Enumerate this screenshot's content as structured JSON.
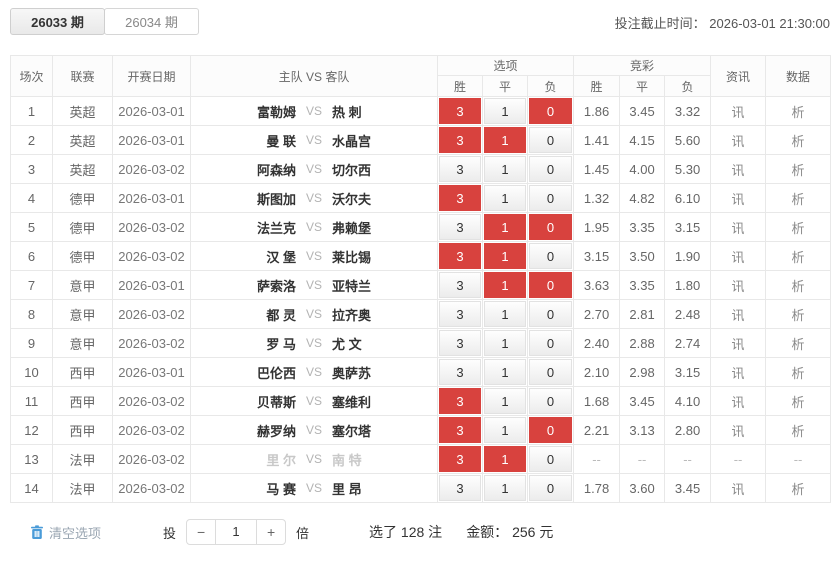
{
  "tabs": [
    {
      "label": "26033 期",
      "active": true
    },
    {
      "label": "26034 期",
      "active": false
    }
  ],
  "deadline": {
    "label": "投注截止时间：",
    "value": "2026-03-01 21:30:00"
  },
  "table": {
    "headers": {
      "match_no": "场次",
      "league": "联赛",
      "date": "开赛日期",
      "teams": "主队  VS  客队",
      "options_group": "选项",
      "jingcai_group": "竞彩",
      "win": "胜",
      "draw": "平",
      "lose": "负",
      "news": "资讯",
      "data": "数据"
    },
    "vs": "VS",
    "option_labels": [
      "3",
      "1",
      "0"
    ],
    "news_label": "讯",
    "data_label": "析",
    "dash": "--",
    "rows": [
      {
        "no": "1",
        "league": "英超",
        "date": "2026-03-01",
        "home": "富勒姆",
        "away": "热 刺",
        "sel": [
          1,
          0,
          1
        ],
        "odds": [
          "1.86",
          "3.45",
          "3.32"
        ],
        "disabled": false
      },
      {
        "no": "2",
        "league": "英超",
        "date": "2026-03-01",
        "home": "曼 联",
        "away": "水晶宫",
        "sel": [
          1,
          1,
          0
        ],
        "odds": [
          "1.41",
          "4.15",
          "5.60"
        ],
        "disabled": false
      },
      {
        "no": "3",
        "league": "英超",
        "date": "2026-03-02",
        "home": "阿森纳",
        "away": "切尔西",
        "sel": [
          0,
          0,
          0
        ],
        "odds": [
          "1.45",
          "4.00",
          "5.30"
        ],
        "disabled": false
      },
      {
        "no": "4",
        "league": "德甲",
        "date": "2026-03-01",
        "home": "斯图加",
        "away": "沃尔夫",
        "sel": [
          1,
          0,
          0
        ],
        "odds": [
          "1.32",
          "4.82",
          "6.10"
        ],
        "disabled": false
      },
      {
        "no": "5",
        "league": "德甲",
        "date": "2026-03-02",
        "home": "法兰克",
        "away": "弗赖堡",
        "sel": [
          0,
          1,
          1
        ],
        "odds": [
          "1.95",
          "3.35",
          "3.15"
        ],
        "disabled": false
      },
      {
        "no": "6",
        "league": "德甲",
        "date": "2026-03-02",
        "home": "汉 堡",
        "away": "莱比锡",
        "sel": [
          1,
          1,
          0
        ],
        "odds": [
          "3.15",
          "3.50",
          "1.90"
        ],
        "disabled": false
      },
      {
        "no": "7",
        "league": "意甲",
        "date": "2026-03-01",
        "home": "萨索洛",
        "away": "亚特兰",
        "sel": [
          0,
          1,
          1
        ],
        "odds": [
          "3.63",
          "3.35",
          "1.80"
        ],
        "disabled": false
      },
      {
        "no": "8",
        "league": "意甲",
        "date": "2026-03-02",
        "home": "都 灵",
        "away": "拉齐奥",
        "sel": [
          0,
          0,
          0
        ],
        "odds": [
          "2.70",
          "2.81",
          "2.48"
        ],
        "disabled": false
      },
      {
        "no": "9",
        "league": "意甲",
        "date": "2026-03-02",
        "home": "罗 马",
        "away": "尤 文",
        "sel": [
          0,
          0,
          0
        ],
        "odds": [
          "2.40",
          "2.88",
          "2.74"
        ],
        "disabled": false
      },
      {
        "no": "10",
        "league": "西甲",
        "date": "2026-03-01",
        "home": "巴伦西",
        "away": "奥萨苏",
        "sel": [
          0,
          0,
          0
        ],
        "odds": [
          "2.10",
          "2.98",
          "3.15"
        ],
        "disabled": false
      },
      {
        "no": "11",
        "league": "西甲",
        "date": "2026-03-02",
        "home": "贝蒂斯",
        "away": "塞维利",
        "sel": [
          1,
          0,
          0
        ],
        "odds": [
          "1.68",
          "3.45",
          "4.10"
        ],
        "disabled": false
      },
      {
        "no": "12",
        "league": "西甲",
        "date": "2026-03-02",
        "home": "赫罗纳",
        "away": "塞尔塔",
        "sel": [
          1,
          0,
          1
        ],
        "odds": [
          "2.21",
          "3.13",
          "2.80"
        ],
        "disabled": false
      },
      {
        "no": "13",
        "league": "法甲",
        "date": "2026-03-02",
        "home": "里 尔",
        "away": "南 特",
        "sel": [
          1,
          1,
          0
        ],
        "odds": [
          "--",
          "--",
          "--"
        ],
        "disabled": true
      },
      {
        "no": "14",
        "league": "法甲",
        "date": "2026-03-02",
        "home": "马 赛",
        "away": "里 昂",
        "sel": [
          0,
          0,
          0
        ],
        "odds": [
          "1.78",
          "3.60",
          "3.45"
        ],
        "disabled": false
      }
    ]
  },
  "footer": {
    "clear": "清空选项",
    "bet_label": "投",
    "minus": "−",
    "plus": "+",
    "multiplier": "1",
    "times_label": "倍",
    "selected_text": "选了 128 注",
    "amount_label": "金额：",
    "amount_value": "256 元"
  },
  "colors": {
    "accent_red": "#d8423e",
    "link_blue": "#4a9bd8",
    "border": "#e8e8e8"
  }
}
